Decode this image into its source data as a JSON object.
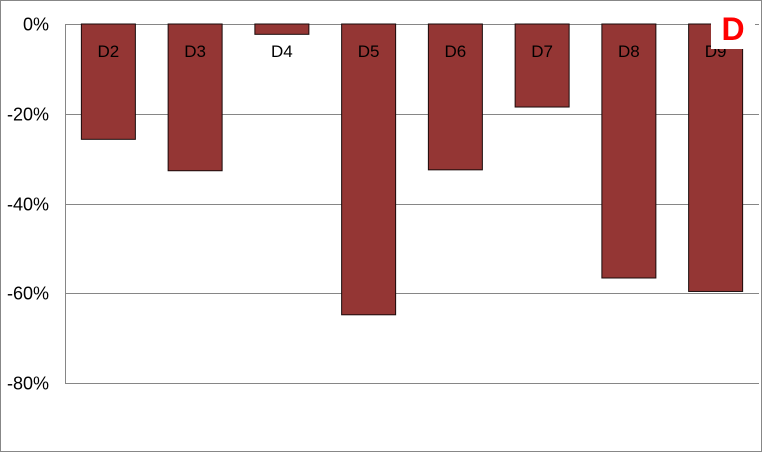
{
  "panel_label": "D",
  "colors": {
    "bar": "#943634",
    "grid": "#868686"
  },
  "chart_data": {
    "type": "bar",
    "categories": [
      "D2",
      "D3",
      "D4",
      "D5",
      "D6",
      "D7",
      "D8",
      "D9"
    ],
    "values": [
      -25.7,
      -32.7,
      -2.3,
      -64.8,
      -32.5,
      -18.5,
      -56.6,
      -59.6
    ],
    "unit": "%",
    "ylim": [
      -80,
      0
    ],
    "yticks": [
      0,
      -20,
      -40,
      -60,
      -80
    ],
    "ytick_labels": [
      "0%",
      "-20%",
      "-40%",
      "-60%",
      "-80%"
    ],
    "grid": true,
    "title": "",
    "xlabel": "",
    "ylabel": ""
  }
}
